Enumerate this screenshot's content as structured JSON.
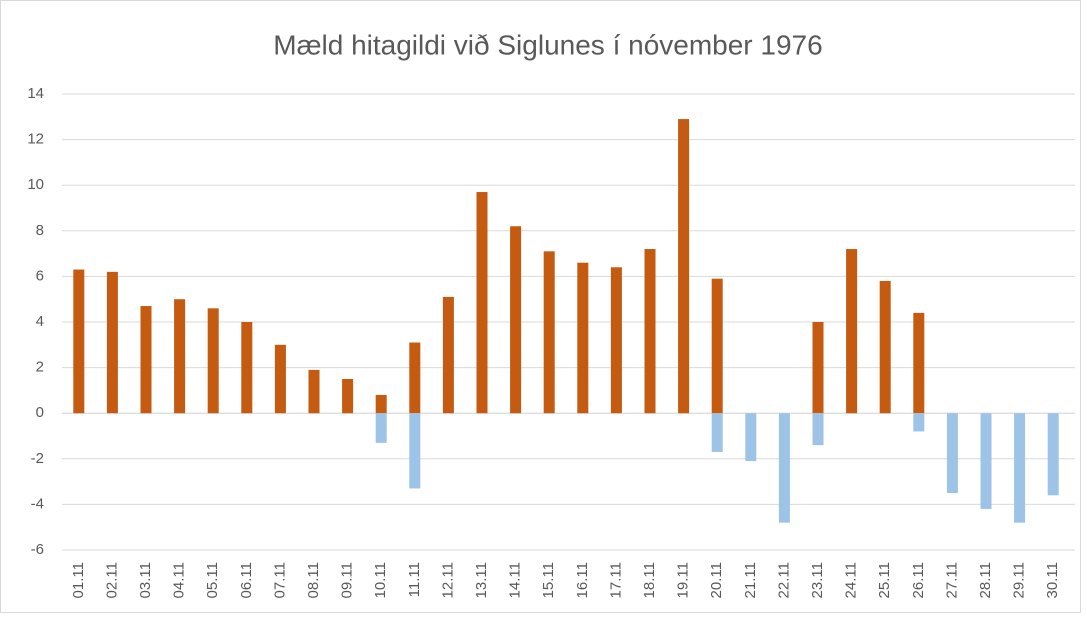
{
  "chart_data": {
    "type": "bar",
    "title": "Mæld hitagildi við Siglunes í nóvember 1976",
    "categories": [
      "01.11",
      "02.11",
      "03.11",
      "04.11",
      "05.11",
      "06.11",
      "07.11",
      "08.11",
      "09.11",
      "10.11",
      "11.11",
      "12.11",
      "13.11",
      "14.11",
      "15.11",
      "16.11",
      "17.11",
      "18.11",
      "19.11",
      "20.11",
      "21.11",
      "22.11",
      "23.11",
      "24.11",
      "25.11",
      "26.11",
      "27.11",
      "28.11",
      "29.11",
      "30.11"
    ],
    "series": [
      {
        "color": "#c55a11",
        "values": [
          6.3,
          6.2,
          4.7,
          5.0,
          4.6,
          4.0,
          3.0,
          1.9,
          1.5,
          0.8,
          3.1,
          5.1,
          9.7,
          8.2,
          7.1,
          6.6,
          6.4,
          7.2,
          12.9,
          5.9,
          null,
          null,
          4.0,
          7.2,
          5.8,
          4.4,
          null,
          null,
          null,
          null
        ]
      },
      {
        "color": "#9dc3e6",
        "values": [
          null,
          null,
          null,
          null,
          null,
          null,
          null,
          null,
          null,
          -1.3,
          -3.3,
          null,
          null,
          null,
          null,
          null,
          null,
          null,
          null,
          -1.7,
          -2.1,
          -4.8,
          -1.4,
          null,
          null,
          -0.8,
          -3.5,
          -4.2,
          -4.8,
          -3.6
        ]
      }
    ],
    "ylim": [
      -6,
      14
    ],
    "yticks": [
      -6,
      -4,
      -2,
      0,
      2,
      4,
      6,
      8,
      10,
      12,
      14
    ],
    "grid": true
  }
}
